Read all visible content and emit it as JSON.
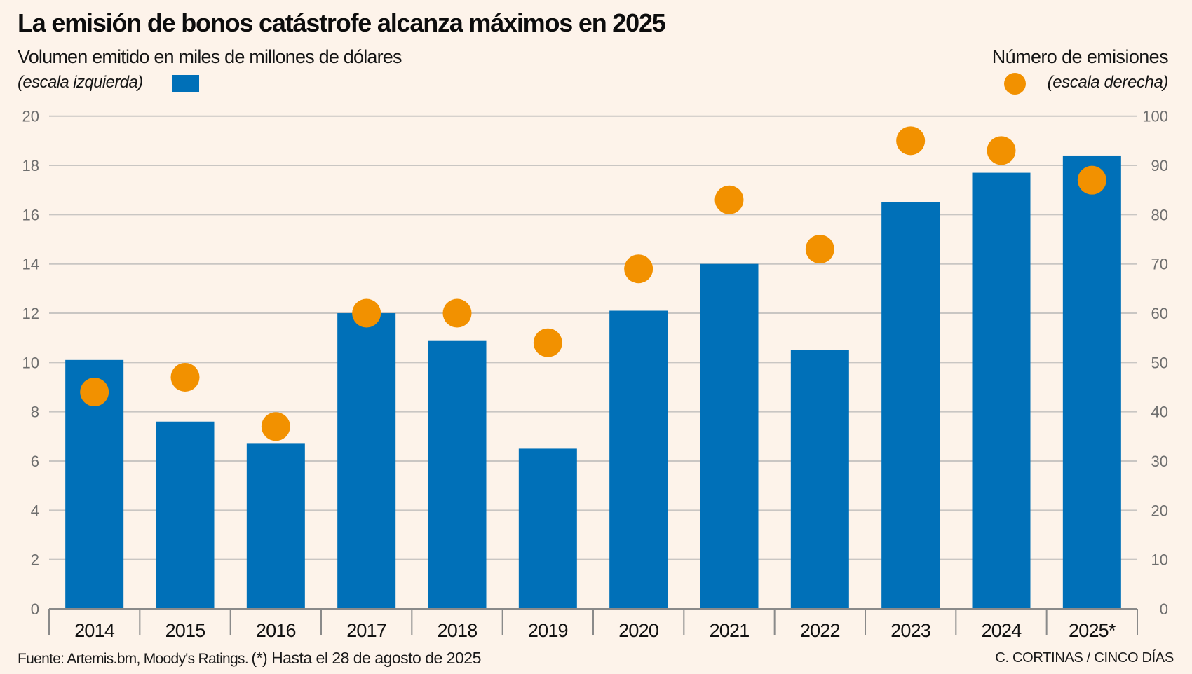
{
  "header": {
    "title": "La emisión de bonos catástrofe alcanza máximos en 2025",
    "subtitle_left": "Volumen emitido en miles de millones de dólares",
    "scale_left": "(escala izquierda)",
    "subtitle_right": "Número de emisiones",
    "scale_right": "(escala derecha)"
  },
  "footer": {
    "source": "Fuente: Artemis.bm, Moody's Ratings.",
    "note": "(*) Hasta el 28 de agosto de 2025",
    "credit": "C. CORTINAS / CINCO DÍAS"
  },
  "colors": {
    "background": "#FDF3EA",
    "bars": "#0070B8",
    "dots": "#F29100",
    "grid": "#C9C6C3",
    "axis": "#8A8A8A"
  },
  "chart_data": {
    "type": "bar",
    "title": "La emisión de bonos catástrofe alcanza máximos en 2025",
    "categories": [
      "2014",
      "2015",
      "2016",
      "2017",
      "2018",
      "2019",
      "2020",
      "2021",
      "2022",
      "2023",
      "2024",
      "2025*"
    ],
    "series": [
      {
        "name": "Volumen emitido en miles de millones de dólares (escala izquierda)",
        "type": "bar",
        "axis": "left",
        "values": [
          10.1,
          7.6,
          6.7,
          12.0,
          10.9,
          6.5,
          12.1,
          14.0,
          10.5,
          16.5,
          17.7,
          18.4
        ]
      },
      {
        "name": "Número de emisiones (escala derecha)",
        "type": "scatter",
        "axis": "right",
        "values": [
          44,
          47,
          37,
          60,
          60,
          54,
          69,
          83,
          73,
          95,
          93,
          87
        ]
      }
    ],
    "y_left": {
      "label": "Volumen emitido en miles de millones de dólares",
      "range": [
        0,
        20
      ],
      "ticks": [
        0,
        2,
        4,
        6,
        8,
        10,
        12,
        14,
        16,
        18,
        20
      ]
    },
    "y_right": {
      "label": "Número de emisiones",
      "range": [
        0,
        100
      ],
      "ticks": [
        0,
        10,
        20,
        30,
        40,
        50,
        60,
        70,
        80,
        90,
        100
      ]
    },
    "xlabel": "",
    "grid": true,
    "legend": "top"
  }
}
